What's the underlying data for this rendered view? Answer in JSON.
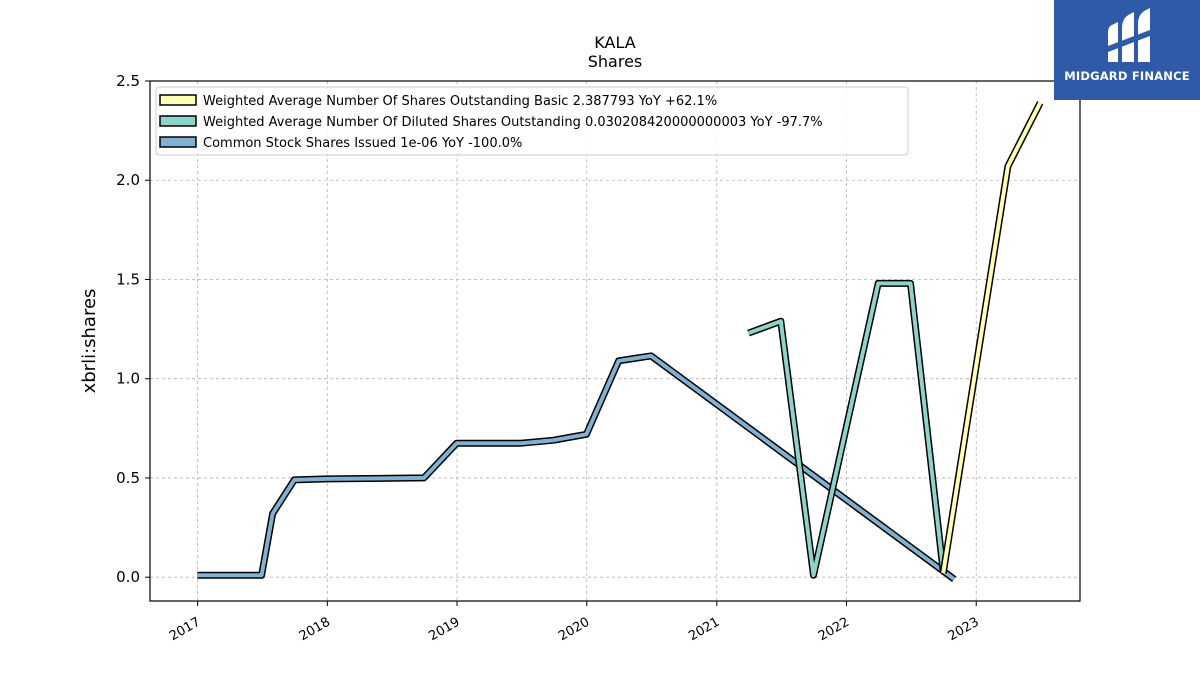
{
  "chart_data": {
    "type": "line",
    "title": "KALA",
    "subtitle": "Shares",
    "xlabel": "",
    "ylabel": "xbrli:shares",
    "ylim": [
      -0.12,
      2.5
    ],
    "xlim": [
      "2016-08-20",
      "2023-10-20"
    ],
    "yticks": [
      0.0,
      0.5,
      1.0,
      1.5,
      2.0,
      2.5
    ],
    "ytick_labels": [
      "0.0",
      "0.5",
      "1.0",
      "1.5",
      "2.0",
      "2.5"
    ],
    "xticks": [
      "2017-01-01",
      "2018-01-01",
      "2019-01-01",
      "2020-01-01",
      "2021-01-01",
      "2022-01-01",
      "2023-01-01"
    ],
    "xtick_labels": [
      "2017",
      "2018",
      "2019",
      "2020",
      "2021",
      "2022",
      "2023"
    ],
    "grid": true,
    "legend_position": "top-left",
    "series": [
      {
        "name": "Weighted Average Number Of Shares Outstanding Basic  2.387793 YoY +62.1%",
        "color": "#ffffb3",
        "points": [
          {
            "x": "2022-09-30",
            "y": 0.02
          },
          {
            "x": "2023-03-31",
            "y": 2.07
          },
          {
            "x": "2023-06-30",
            "y": 2.39
          }
        ]
      },
      {
        "name": "Weighted Average Number Of Diluted Shares Outstanding  0.030208420000000003 YoY -97.7%",
        "color": "#8dd3c7",
        "points": [
          {
            "x": "2021-03-31",
            "y": 1.23
          },
          {
            "x": "2021-06-30",
            "y": 1.29
          },
          {
            "x": "2021-09-30",
            "y": 0.01
          },
          {
            "x": "2022-03-31",
            "y": 1.48
          },
          {
            "x": "2022-06-30",
            "y": 1.48
          },
          {
            "x": "2022-09-30",
            "y": 0.03
          }
        ]
      },
      {
        "name": "Common Stock Shares Issued  1e-06 YoY -100.0%",
        "color": "#80b1d3",
        "points": [
          {
            "x": "2016-12-31",
            "y": 0.01
          },
          {
            "x": "2017-06-30",
            "y": 0.01
          },
          {
            "x": "2017-07-31",
            "y": 0.32
          },
          {
            "x": "2017-09-30",
            "y": 0.49
          },
          {
            "x": "2017-12-31",
            "y": 0.495
          },
          {
            "x": "2018-09-30",
            "y": 0.5
          },
          {
            "x": "2018-12-31",
            "y": 0.675
          },
          {
            "x": "2019-06-30",
            "y": 0.675
          },
          {
            "x": "2019-09-30",
            "y": 0.69
          },
          {
            "x": "2019-12-31",
            "y": 0.72
          },
          {
            "x": "2020-03-31",
            "y": 1.09
          },
          {
            "x": "2020-06-30",
            "y": 1.115
          },
          {
            "x": "2022-10-31",
            "y": -0.01
          }
        ]
      }
    ]
  },
  "logo": {
    "text": "MIDGARD FINANCE"
  }
}
